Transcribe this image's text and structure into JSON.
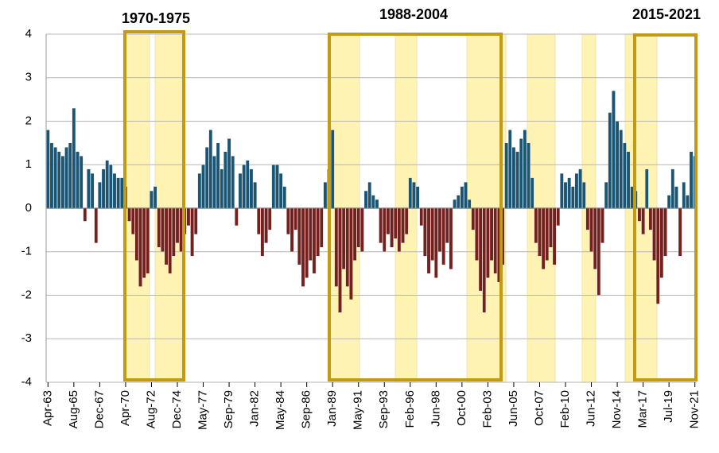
{
  "chart_data": {
    "type": "bar",
    "annotations": [
      "1970-1975",
      "1988-2004",
      "2015-2021"
    ],
    "categories": [
      "Apr-63",
      null,
      null,
      null,
      null,
      null,
      null,
      "Aug-65",
      null,
      null,
      null,
      null,
      null,
      null,
      "Dec-67",
      null,
      null,
      null,
      null,
      null,
      null,
      "Apr-70",
      null,
      null,
      null,
      null,
      null,
      null,
      "Aug-72",
      null,
      null,
      null,
      null,
      null,
      null,
      "Dec-74",
      null,
      null,
      null,
      null,
      null,
      null,
      "May-77",
      null,
      null,
      null,
      null,
      null,
      null,
      "Sep-79",
      null,
      null,
      null,
      null,
      null,
      null,
      "Jan-82",
      null,
      null,
      null,
      null,
      null,
      null,
      "May-84",
      null,
      null,
      null,
      null,
      null,
      null,
      "Sep-86",
      null,
      null,
      null,
      null,
      null,
      null,
      "Jan-89",
      null,
      null,
      null,
      null,
      null,
      null,
      "May-91",
      null,
      null,
      null,
      null,
      null,
      null,
      "Sep-93",
      null,
      null,
      null,
      null,
      null,
      null,
      "Feb-96",
      null,
      null,
      null,
      null,
      null,
      null,
      "Jun-98",
      null,
      null,
      null,
      null,
      null,
      null,
      "Oct-00",
      null,
      null,
      null,
      null,
      null,
      null,
      "Feb-03",
      null,
      null,
      null,
      null,
      null,
      null,
      "Jun-05",
      null,
      null,
      null,
      null,
      null,
      null,
      "Oct-07",
      null,
      null,
      null,
      null,
      null,
      null,
      "Feb-10",
      null,
      null,
      null,
      null,
      null,
      null,
      "Jun-12",
      null,
      null,
      null,
      null,
      null,
      null,
      "Nov-14",
      null,
      null,
      null,
      null,
      null,
      null,
      "Mar-17",
      null,
      null,
      null,
      null,
      null,
      null,
      "Jul-19",
      null,
      null,
      null,
      null,
      null,
      null,
      "Nov-21"
    ],
    "values": [
      1.8,
      1.5,
      1.4,
      1.3,
      1.2,
      1.4,
      1.5,
      2.3,
      1.3,
      1.2,
      -0.3,
      0.9,
      0.8,
      -0.8,
      0.6,
      0.9,
      1.1,
      1.0,
      0.8,
      0.7,
      0.7,
      0.5,
      -0.3,
      -0.6,
      -1.2,
      -1.8,
      -1.6,
      -1.5,
      0.4,
      0.5,
      -0.9,
      -1.0,
      -1.3,
      -1.5,
      -1.1,
      -0.8,
      -1.0,
      -0.6,
      -0.4,
      -1.1,
      -0.6,
      0.8,
      1.0,
      1.4,
      1.8,
      1.2,
      1.5,
      0.9,
      1.3,
      1.6,
      1.2,
      -0.4,
      0.8,
      1.0,
      1.1,
      0.9,
      0.6,
      -0.6,
      -1.1,
      -0.8,
      -0.5,
      1.0,
      1.0,
      0.8,
      0.5,
      -0.6,
      -1.0,
      -0.5,
      -1.3,
      -1.8,
      -1.6,
      -1.2,
      -1.5,
      -1.1,
      -0.9,
      0.6,
      0.9,
      1.8,
      -1.8,
      -2.4,
      -1.4,
      -1.8,
      -2.1,
      -1.2,
      -0.9,
      -1.0,
      0.4,
      0.6,
      0.3,
      0.2,
      -0.8,
      -1.0,
      -0.6,
      -0.9,
      -0.7,
      -1.0,
      -0.8,
      -0.6,
      0.7,
      0.6,
      0.5,
      -0.4,
      -1.1,
      -1.5,
      -1.2,
      -1.6,
      -1.0,
      -1.3,
      -0.8,
      -1.4,
      0.2,
      0.3,
      0.5,
      0.6,
      0.2,
      -0.5,
      -1.2,
      -1.9,
      -2.4,
      -1.6,
      -1.2,
      -1.5,
      -1.7,
      -1.3,
      1.5,
      1.8,
      1.4,
      1.3,
      1.6,
      1.8,
      1.5,
      0.7,
      -0.8,
      -1.1,
      -1.4,
      -1.2,
      -0.9,
      -1.3,
      -0.4,
      0.8,
      0.6,
      0.7,
      0.5,
      0.8,
      0.9,
      0.6,
      -0.5,
      -1.0,
      -1.4,
      -2.0,
      -0.8,
      0.6,
      2.2,
      2.7,
      2.0,
      1.8,
      1.5,
      1.3,
      0.5,
      0.4,
      -0.3,
      -0.6,
      0.9,
      -0.5,
      -1.2,
      -2.2,
      -1.6,
      -1.1,
      0.3,
      0.9,
      0.5,
      -1.1,
      0.6,
      0.3,
      1.3,
      1.2
    ],
    "color": "#1b5574",
    "negative_color": "#74201f",
    "ylim": [
      -4,
      4
    ],
    "yticks": [
      -4,
      -3,
      -2,
      -1,
      0,
      1,
      2,
      3,
      4
    ],
    "grid": true
  }
}
